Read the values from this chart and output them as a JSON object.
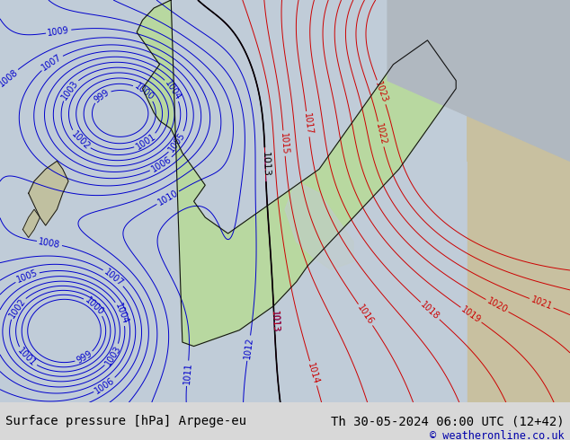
{
  "title_left": "Surface pressure [hPa] Arpege-eu",
  "title_right": "Th 30-05-2024 06:00 UTC (12+42)",
  "copyright": "© weatheronline.co.uk",
  "ocean_color": "#c8d4de",
  "land_green_color": "#b8d8a0",
  "land_tan_color": "#c8c0a0",
  "land_grey_color": "#b8b8b8",
  "bottom_bar_color": "#d8d8d8",
  "blue_color": "#0000cc",
  "red_color": "#cc0000",
  "black_color": "#000000",
  "title_fontsize": 10,
  "copyright_fontsize": 8.5,
  "label_fontsize": 7
}
